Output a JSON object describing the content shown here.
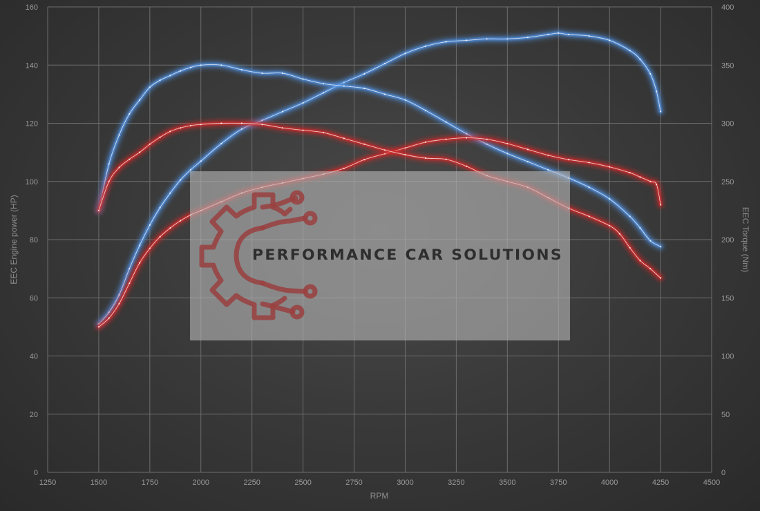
{
  "chart_data": {
    "type": "line",
    "title": "",
    "xlabel": "RPM",
    "ylabel": "EEC Engine power (HP)",
    "y2label": "EEC Torque (Nm)",
    "xlim": [
      1250,
      4500
    ],
    "ylim": [
      0,
      160
    ],
    "y2lim": [
      0,
      400
    ],
    "xticks": [
      1250,
      1500,
      1750,
      2000,
      2250,
      2500,
      2750,
      3000,
      3250,
      3500,
      3750,
      4000,
      4250,
      4500
    ],
    "yticks": [
      0,
      20,
      40,
      60,
      80,
      100,
      120,
      140,
      160
    ],
    "y2ticks": [
      0,
      50,
      100,
      150,
      200,
      250,
      300,
      350,
      400
    ],
    "grid": true,
    "legend": "none",
    "series": [
      {
        "axis": "left",
        "color": "#4f8fe0",
        "x": [
          1500,
          1550,
          1600,
          1650,
          1700,
          1750,
          1800,
          1850,
          1900,
          1950,
          2000,
          2100,
          2200,
          2300,
          2400,
          2500,
          2600,
          2700,
          2800,
          2900,
          3000,
          3100,
          3200,
          3300,
          3400,
          3500,
          3600,
          3700,
          3750,
          3800,
          3900,
          4000,
          4100,
          4150,
          4200,
          4230,
          4250
        ],
        "y": [
          51,
          55,
          61,
          70,
          78,
          85,
          91,
          96,
          100.5,
          104,
          107,
          113,
          118,
          121,
          124,
          127,
          130.5,
          134,
          137,
          140.5,
          144,
          146.5,
          148,
          148.5,
          149,
          149,
          149.5,
          150.5,
          151,
          150.5,
          150,
          148.5,
          145,
          142,
          137,
          131,
          124
        ]
      },
      {
        "axis": "right",
        "color": "#4f8fe0",
        "x": [
          1500,
          1550,
          1600,
          1650,
          1700,
          1750,
          1800,
          1850,
          1900,
          1950,
          2000,
          2100,
          2200,
          2300,
          2400,
          2500,
          2600,
          2700,
          2800,
          2900,
          3000,
          3100,
          3200,
          3300,
          3400,
          3500,
          3600,
          3700,
          3800,
          3900,
          4000,
          4100,
          4150,
          4200,
          4250
        ],
        "y": [
          225,
          265,
          290,
          308,
          320,
          331,
          337,
          341,
          345,
          348,
          350,
          350,
          346,
          343,
          343,
          338,
          334,
          332,
          330,
          325,
          320,
          311,
          301,
          291,
          282,
          274,
          267,
          260,
          253,
          245,
          235,
          220,
          210,
          199,
          194
        ]
      },
      {
        "axis": "left",
        "color": "#d02a2a",
        "x": [
          1500,
          1550,
          1600,
          1650,
          1700,
          1750,
          1800,
          1850,
          1900,
          1950,
          2000,
          2100,
          2200,
          2300,
          2400,
          2500,
          2600,
          2700,
          2800,
          2900,
          3000,
          3100,
          3200,
          3300,
          3400,
          3500,
          3600,
          3700,
          3800,
          3900,
          4000,
          4100,
          4150,
          4200,
          4230,
          4250
        ],
        "y": [
          50,
          53,
          58,
          65,
          72,
          77,
          81,
          84,
          86.5,
          88.5,
          90,
          93,
          96,
          98,
          99.5,
          101,
          102.5,
          104.5,
          107.5,
          109.5,
          111.5,
          113.5,
          114.5,
          115,
          114.5,
          113,
          111,
          109,
          107.5,
          106.5,
          105,
          103,
          101.5,
          100,
          99,
          92
        ]
      },
      {
        "axis": "right",
        "color": "#d02a2a",
        "x": [
          1500,
          1550,
          1600,
          1650,
          1700,
          1750,
          1800,
          1850,
          1900,
          1950,
          2000,
          2100,
          2200,
          2300,
          2400,
          2500,
          2600,
          2700,
          2800,
          2900,
          3000,
          3100,
          3200,
          3300,
          3400,
          3500,
          3600,
          3700,
          3800,
          3900,
          4000,
          4050,
          4100,
          4150,
          4200,
          4250
        ],
        "y": [
          225,
          250,
          262,
          269,
          275,
          282,
          288,
          293,
          296,
          298,
          299,
          300,
          300,
          299,
          296,
          294,
          292,
          287,
          282,
          277,
          273,
          270,
          269,
          263,
          255,
          250,
          245,
          236,
          227,
          220,
          212,
          205,
          193,
          182,
          175,
          167
        ]
      }
    ]
  },
  "watermark": {
    "text": "PERFORMANCE CAR SOLUTIONS",
    "logo_icon": "gear-circuit-logo-icon"
  }
}
